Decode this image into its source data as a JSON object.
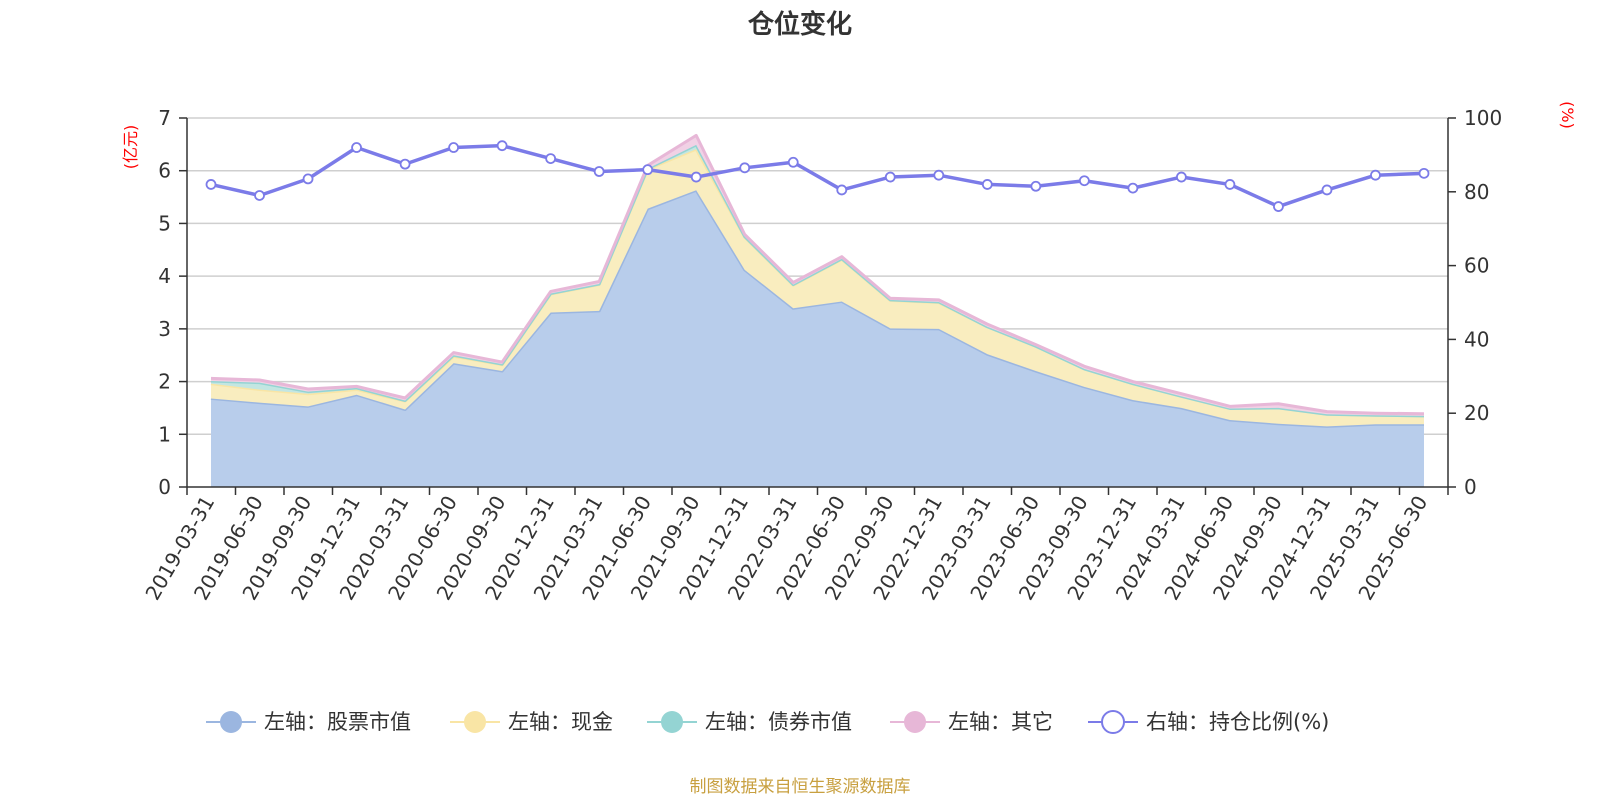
{
  "chart_data": {
    "type": "area",
    "title": "仓位变化",
    "source_note": "制图数据来自恒生聚源数据库",
    "left_axis": {
      "unit": "(亿元)",
      "ylim": [
        0,
        7
      ],
      "ticks": [
        "0",
        "1",
        "2",
        "3",
        "4",
        "5",
        "6",
        "7"
      ]
    },
    "right_axis": {
      "unit": "(%)",
      "ylim": [
        0,
        100
      ],
      "ticks": [
        "0",
        "20",
        "40",
        "60",
        "80",
        "100"
      ]
    },
    "categories": [
      "2019-03-31",
      "2019-06-30",
      "2019-09-30",
      "2019-12-31",
      "2020-03-31",
      "2020-06-30",
      "2020-09-30",
      "2020-12-31",
      "2021-03-31",
      "2021-06-30",
      "2021-09-30",
      "2021-12-31",
      "2022-03-31",
      "2022-06-30",
      "2022-09-30",
      "2022-12-31",
      "2023-03-31",
      "2023-06-30",
      "2023-09-30",
      "2023-12-31",
      "2024-03-31",
      "2024-06-30",
      "2024-09-30",
      "2024-12-31",
      "2025-03-31",
      "2025-06-30"
    ],
    "series": [
      {
        "name": "左轴：股票市值",
        "axis": "left",
        "type": "stacked-area",
        "color": "#9bb6e0",
        "fill": "#b8cdeb",
        "values": [
          1.68,
          1.6,
          1.53,
          1.75,
          1.47,
          2.35,
          2.2,
          3.31,
          3.34,
          5.28,
          5.63,
          4.12,
          3.39,
          3.52,
          3.01,
          3.0,
          2.52,
          2.2,
          1.9,
          1.65,
          1.5,
          1.27,
          1.2,
          1.15,
          1.19,
          1.19
        ]
      },
      {
        "name": "左轴：现金",
        "axis": "left",
        "type": "stacked-area",
        "color": "#f9e5a5",
        "fill": "#f9edbf",
        "values": [
          0.28,
          0.25,
          0.24,
          0.1,
          0.16,
          0.13,
          0.12,
          0.35,
          0.5,
          0.75,
          0.78,
          0.62,
          0.44,
          0.8,
          0.53,
          0.5,
          0.52,
          0.47,
          0.34,
          0.31,
          0.22,
          0.22,
          0.3,
          0.23,
          0.17,
          0.16
        ]
      },
      {
        "name": "左轴：债券市值",
        "axis": "left",
        "type": "stacked-area",
        "color": "#94d4d3",
        "fill": "#c3e6e2",
        "values": [
          0.05,
          0.13,
          0.04,
          0.03,
          0.01,
          0.02,
          0.01,
          0.01,
          0.01,
          0.01,
          0.08,
          0.01,
          0.01,
          0.01,
          0.01,
          0.01,
          0.0,
          0.0,
          0.0,
          0.0,
          0.0,
          0.0,
          0.0,
          0.0,
          0.0,
          0.0
        ]
      },
      {
        "name": "左轴：其它",
        "axis": "left",
        "type": "stacked-area",
        "color": "#e7b7d7",
        "fill": "#f1d1e5",
        "values": [
          0.05,
          0.05,
          0.05,
          0.03,
          0.05,
          0.05,
          0.04,
          0.04,
          0.05,
          0.06,
          0.18,
          0.04,
          0.04,
          0.04,
          0.03,
          0.04,
          0.05,
          0.03,
          0.05,
          0.04,
          0.05,
          0.04,
          0.08,
          0.05,
          0.04,
          0.04
        ]
      },
      {
        "name": "右轴：持仓比例(%)",
        "axis": "right",
        "type": "line",
        "color": "#7b7be8",
        "values": [
          82,
          79,
          83.5,
          92,
          87.5,
          92,
          92.5,
          89,
          85.5,
          86,
          84,
          86.5,
          88,
          80.5,
          84,
          84.5,
          82,
          81.5,
          83,
          81,
          84,
          82,
          76,
          80.5,
          84.5,
          85
        ]
      }
    ],
    "legend_position": "bottom-center",
    "grid": true
  }
}
